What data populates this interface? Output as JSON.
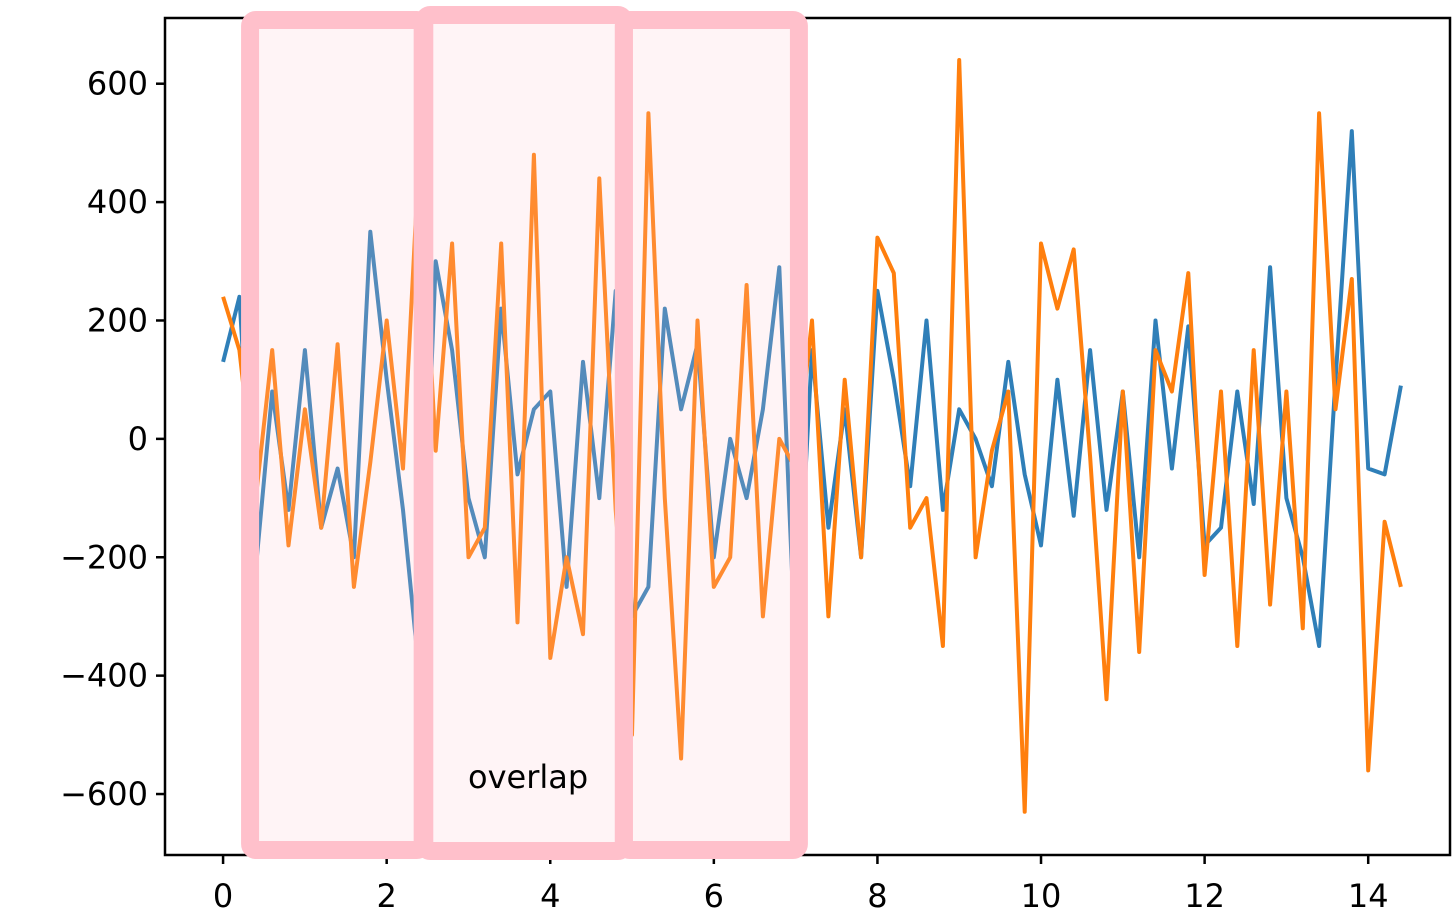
{
  "chart_data": {
    "type": "line",
    "x": [
      0,
      0.2,
      0.4,
      0.6,
      0.8,
      1.0,
      1.2,
      1.4,
      1.6,
      1.8,
      2.0,
      2.2,
      2.4,
      2.6,
      2.8,
      3.0,
      3.2,
      3.4,
      3.6,
      3.8,
      4.0,
      4.2,
      4.4,
      4.6,
      4.8,
      5.0,
      5.2,
      5.4,
      5.6,
      5.8,
      6.0,
      6.2,
      6.4,
      6.6,
      6.8,
      7.0,
      7.2,
      7.4,
      7.6,
      7.8,
      8.0,
      8.2,
      8.4,
      8.6,
      8.8,
      9.0,
      9.2,
      9.4,
      9.6,
      9.8,
      10.0,
      10.2,
      10.4,
      10.6,
      10.8,
      11.0,
      11.2,
      11.4,
      11.6,
      11.8,
      12.0,
      12.2,
      12.4,
      12.6,
      12.8,
      13.0,
      13.2,
      13.4,
      13.6,
      13.8,
      14.0,
      14.2,
      14.4
    ],
    "series": [
      {
        "color": "#2f7fb8",
        "values": [
          130,
          240,
          -220,
          80,
          -120,
          150,
          -150,
          -50,
          -200,
          350,
          100,
          -120,
          -400,
          300,
          150,
          -100,
          -200,
          220,
          -60,
          50,
          80,
          -250,
          130,
          -100,
          250,
          -300,
          -250,
          220,
          50,
          160,
          -200,
          0,
          -100,
          50,
          290,
          -370,
          150,
          -150,
          50,
          -200,
          250,
          100,
          -80,
          200,
          -120,
          50,
          0,
          -80,
          130,
          -60,
          -180,
          100,
          -130,
          150,
          -120,
          80,
          -200,
          200,
          -50,
          190,
          -180,
          -150,
          80,
          -110,
          290,
          -100,
          -200,
          -350,
          100,
          520,
          -50,
          -60,
          90
        ]
      },
      {
        "color": "#ff7f0e",
        "values": [
          240,
          150,
          -100,
          150,
          -180,
          50,
          -150,
          160,
          -250,
          -40,
          200,
          -50,
          490,
          -20,
          330,
          -200,
          -150,
          330,
          -310,
          480,
          -370,
          -200,
          -330,
          440,
          -120,
          -500,
          550,
          -100,
          -540,
          200,
          -250,
          -200,
          260,
          -300,
          0,
          -50,
          200,
          -300,
          100,
          -200,
          340,
          280,
          -150,
          -100,
          -350,
          640,
          -200,
          -20,
          80,
          -630,
          330,
          220,
          320,
          -30,
          -440,
          80,
          -360,
          150,
          80,
          280,
          -230,
          80,
          -350,
          150,
          -280,
          80,
          -320,
          550,
          50,
          270,
          -560,
          -140,
          -250
        ]
      }
    ],
    "highlights": [
      [
        0.33,
        2.44
      ],
      [
        2.46,
        4.9
      ],
      [
        4.9,
        7.04
      ]
    ],
    "annotation": "overlap",
    "xlim": [
      -0.71,
      15
    ],
    "ylim": [
      -703,
      711
    ],
    "xticks": [
      0,
      2,
      4,
      6,
      8,
      10,
      12,
      14
    ],
    "yticks": [
      {
        "value": -600,
        "label": "−600"
      },
      {
        "value": -400,
        "label": "−400"
      },
      {
        "value": -200,
        "label": "−200"
      },
      0,
      200,
      400,
      600
    ]
  }
}
